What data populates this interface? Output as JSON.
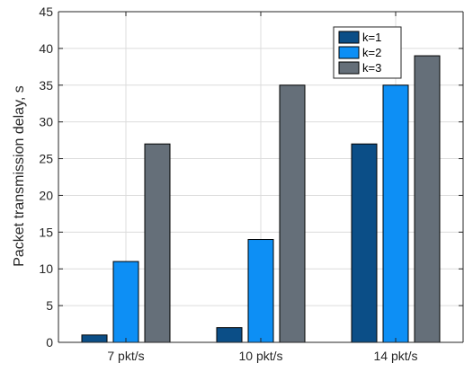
{
  "chart_data": {
    "type": "bar",
    "title": "",
    "xlabel": "",
    "ylabel": "Packet transmission delay, s",
    "categories": [
      "7 pkt/s",
      "10 pkt/s",
      "14 pkt/s"
    ],
    "series": [
      {
        "name": "k=1",
        "values": [
          1,
          2,
          27
        ],
        "color": "#0b4e87"
      },
      {
        "name": "k=2",
        "values": [
          11,
          14,
          35
        ],
        "color": "#0d8ff5"
      },
      {
        "name": "k=3",
        "values": [
          27,
          35,
          39
        ],
        "color": "#656f79"
      }
    ],
    "ylim": [
      0,
      45
    ],
    "yticks": [
      0,
      5,
      10,
      15,
      20,
      25,
      30,
      35,
      40,
      45
    ],
    "grid": true,
    "legend_position": "top-right",
    "colors": {
      "grid": "#dcdcdc",
      "axis": "#262626",
      "bar_edge": "#000000"
    }
  }
}
